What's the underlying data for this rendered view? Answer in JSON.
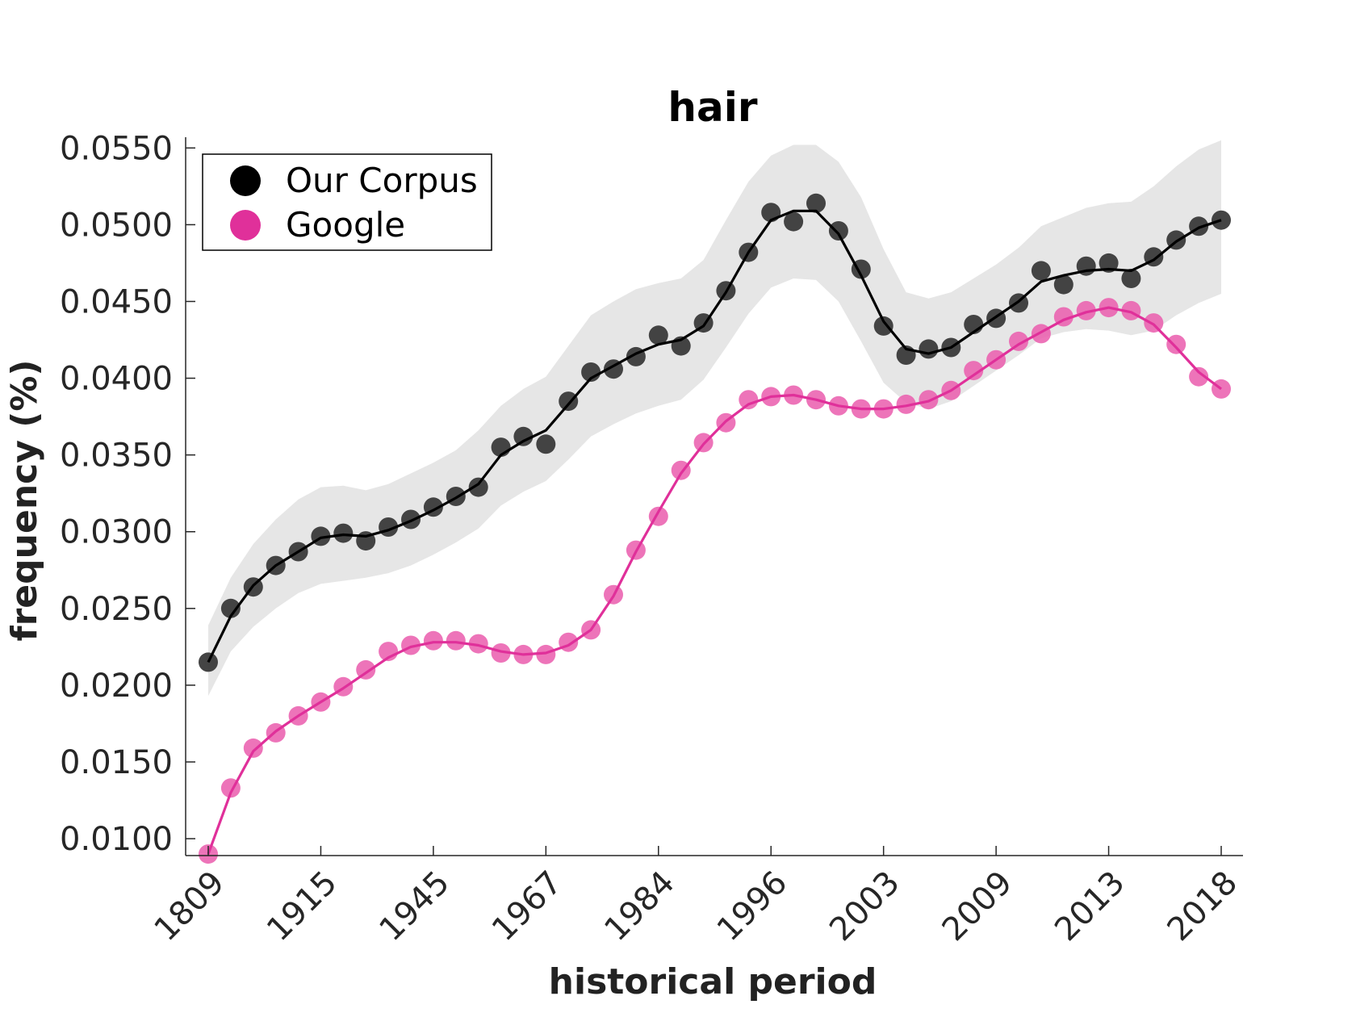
{
  "chart_data": {
    "type": "line",
    "title": "hair",
    "xlabel": "historical period",
    "ylabel": "frequency (%)",
    "x_tick_labels": [
      "1809",
      "1915",
      "1945",
      "1967",
      "1984",
      "1996",
      "2003",
      "2009",
      "2013",
      "2018"
    ],
    "y_tick_labels": [
      "0.0100",
      "0.0150",
      "0.0200",
      "0.0250",
      "0.0300",
      "0.0350",
      "0.0400",
      "0.0450",
      "0.0500",
      "0.0550"
    ],
    "ylim": [
      0.0089,
      0.0557
    ],
    "grid": false,
    "legend_position": "top-left",
    "series": [
      {
        "name": "Our Corpus",
        "color": "#000000",
        "marker_color": "#3a3a3a",
        "values": [
          0.0215,
          0.025,
          0.0264,
          0.0278,
          0.0287,
          0.0297,
          0.0299,
          0.0294,
          0.0303,
          0.0308,
          0.0316,
          0.0323,
          0.0329,
          0.0355,
          0.0362,
          0.0357,
          0.0385,
          0.0404,
          0.0406,
          0.0414,
          0.0428,
          0.0421,
          0.0436,
          0.0457,
          0.0482,
          0.0508,
          0.0502,
          0.0514,
          0.0496,
          0.0471,
          0.0434,
          0.0415,
          0.0419,
          0.042,
          0.0435,
          0.0439,
          0.0449,
          0.047,
          0.0461,
          0.0473,
          0.0475,
          0.0465,
          0.0479,
          0.049,
          0.0499,
          0.0503
        ],
        "fit": [
          0.0215,
          0.0245,
          0.0265,
          0.0278,
          0.0287,
          0.0296,
          0.0298,
          0.0297,
          0.0301,
          0.0307,
          0.0314,
          0.0322,
          0.0331,
          0.035,
          0.0359,
          0.0366,
          0.0383,
          0.04,
          0.0408,
          0.0416,
          0.0422,
          0.0425,
          0.0434,
          0.0456,
          0.0482,
          0.0503,
          0.0509,
          0.0509,
          0.0494,
          0.0467,
          0.0437,
          0.0419,
          0.0416,
          0.042,
          0.043,
          0.044,
          0.045,
          0.0463,
          0.0467,
          0.047,
          0.0471,
          0.047,
          0.0477,
          0.0489,
          0.0498,
          0.0503
        ],
        "band_upper": [
          0.0239,
          0.027,
          0.0292,
          0.0308,
          0.0321,
          0.0329,
          0.033,
          0.0327,
          0.0331,
          0.0338,
          0.0345,
          0.0353,
          0.0366,
          0.0382,
          0.0393,
          0.0401,
          0.0421,
          0.0441,
          0.045,
          0.0458,
          0.0462,
          0.0465,
          0.0477,
          0.0503,
          0.0528,
          0.0545,
          0.0552,
          0.0552,
          0.0541,
          0.0518,
          0.0484,
          0.0456,
          0.0452,
          0.0456,
          0.0465,
          0.0474,
          0.0485,
          0.0499,
          0.0505,
          0.0511,
          0.0514,
          0.0515,
          0.0525,
          0.0538,
          0.0549,
          0.0555
        ],
        "band_lower": [
          0.0193,
          0.0222,
          0.0238,
          0.025,
          0.026,
          0.0266,
          0.0268,
          0.027,
          0.0273,
          0.0278,
          0.0285,
          0.0293,
          0.0302,
          0.0317,
          0.0326,
          0.0333,
          0.0347,
          0.0362,
          0.037,
          0.0377,
          0.0382,
          0.0386,
          0.0399,
          0.042,
          0.0442,
          0.0459,
          0.0465,
          0.0464,
          0.045,
          0.0424,
          0.0397,
          0.0384,
          0.038,
          0.0385,
          0.0395,
          0.0405,
          0.0415,
          0.0426,
          0.043,
          0.0432,
          0.0431,
          0.0428,
          0.0431,
          0.0441,
          0.0449,
          0.0455
        ]
      },
      {
        "name": "Google",
        "color": "#e0309a",
        "marker_color": "#ea5cad",
        "values": [
          0.009,
          0.0133,
          0.0159,
          0.0169,
          0.018,
          0.0189,
          0.0199,
          0.021,
          0.0222,
          0.0226,
          0.0229,
          0.0229,
          0.0227,
          0.0221,
          0.022,
          0.022,
          0.0228,
          0.0236,
          0.0259,
          0.0288,
          0.031,
          0.034,
          0.0358,
          0.0371,
          0.0386,
          0.0388,
          0.0389,
          0.0386,
          0.0382,
          0.038,
          0.038,
          0.0383,
          0.0386,
          0.0392,
          0.0405,
          0.0412,
          0.0424,
          0.0429,
          0.044,
          0.0444,
          0.0446,
          0.0444,
          0.0436,
          0.0422,
          0.0401,
          0.0393
        ],
        "fit": [
          0.009,
          0.013,
          0.0157,
          0.017,
          0.018,
          0.0189,
          0.0198,
          0.0208,
          0.0218,
          0.0225,
          0.0228,
          0.0228,
          0.0226,
          0.0222,
          0.022,
          0.0221,
          0.0226,
          0.0236,
          0.0258,
          0.0287,
          0.0313,
          0.0338,
          0.0357,
          0.0372,
          0.0383,
          0.0388,
          0.0389,
          0.0386,
          0.0382,
          0.038,
          0.038,
          0.0382,
          0.0385,
          0.0392,
          0.0402,
          0.0412,
          0.0422,
          0.043,
          0.0438,
          0.0443,
          0.0446,
          0.0443,
          0.0435,
          0.042,
          0.0404,
          0.0393
        ]
      }
    ],
    "band": {
      "color": "#e6e6e6"
    },
    "axis_color": "#262626"
  }
}
